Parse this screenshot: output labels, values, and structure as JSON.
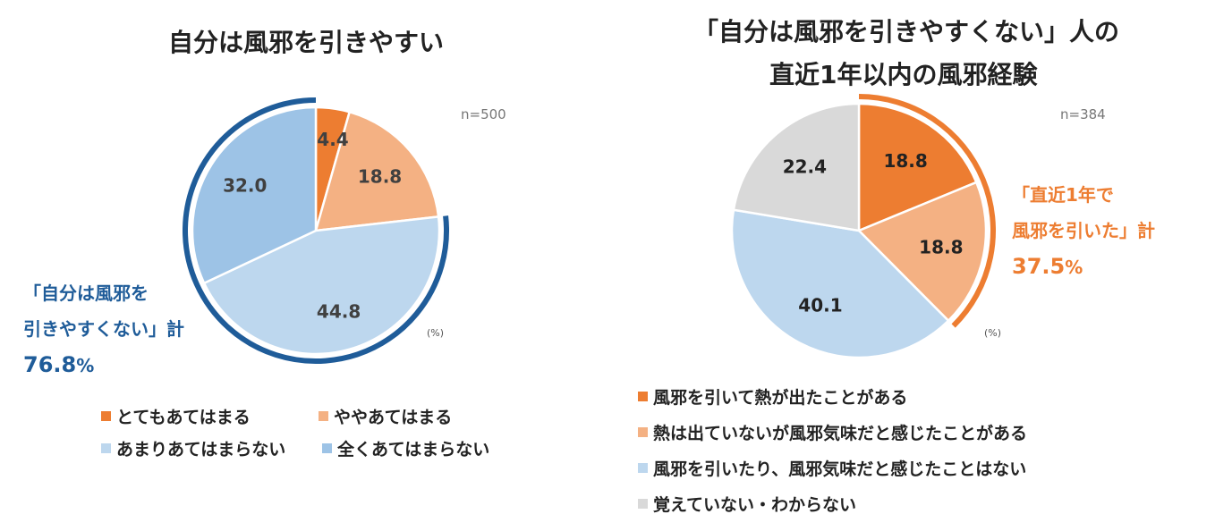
{
  "chart_data": [
    {
      "type": "pie",
      "title": "自分は風邪を引きやすい",
      "n_label": "n=500",
      "unit_label": "(%)",
      "categories": [
        "とてもあてはまる",
        "ややあてはまる",
        "あまりあてはまらない",
        "全くあてはまらない"
      ],
      "values": [
        4.4,
        18.8,
        44.8,
        32.0
      ],
      "value_labels": [
        "4.4",
        "18.8",
        "44.8",
        "32.0"
      ],
      "colors": [
        "#ED7D31",
        "#F4B183",
        "#BDD7EE",
        "#9DC3E6"
      ],
      "label_color": "#404040",
      "bracket": {
        "line1": "「自分は風邪を",
        "line2": "引きやすくない」計",
        "value": "76.8",
        "unit": "%",
        "color": "#1F5C99",
        "covers": [
          2,
          3
        ]
      },
      "legend": {
        "placement": "bottom"
      }
    },
    {
      "type": "pie",
      "title_line1": "「自分は風邪を引きやすくない」人の",
      "title_line2": "直近1年以内の風邪経験",
      "n_label": "n=384",
      "unit_label": "(%)",
      "categories": [
        "風邪を引いて熱が出たことがある",
        "熱は出ていないが風邪気味だと感じたことがある",
        "風邪を引いたり、風邪気味だと感じたことはない",
        "覚えていない・わからない"
      ],
      "values": [
        18.8,
        18.8,
        40.1,
        22.4
      ],
      "value_labels": [
        "18.8",
        "18.8",
        "40.1",
        "22.4"
      ],
      "colors": [
        "#ED7D31",
        "#F4B183",
        "#BDD7EE",
        "#D9D9D9"
      ],
      "label_color": "#222222",
      "bracket": {
        "line1": "「直近1年で",
        "line2": "風邪を引いた」計",
        "value": "37.5",
        "unit": "%",
        "color": "#ED7D31",
        "covers": [
          0,
          1
        ]
      },
      "legend": {
        "placement": "bottom"
      }
    }
  ]
}
